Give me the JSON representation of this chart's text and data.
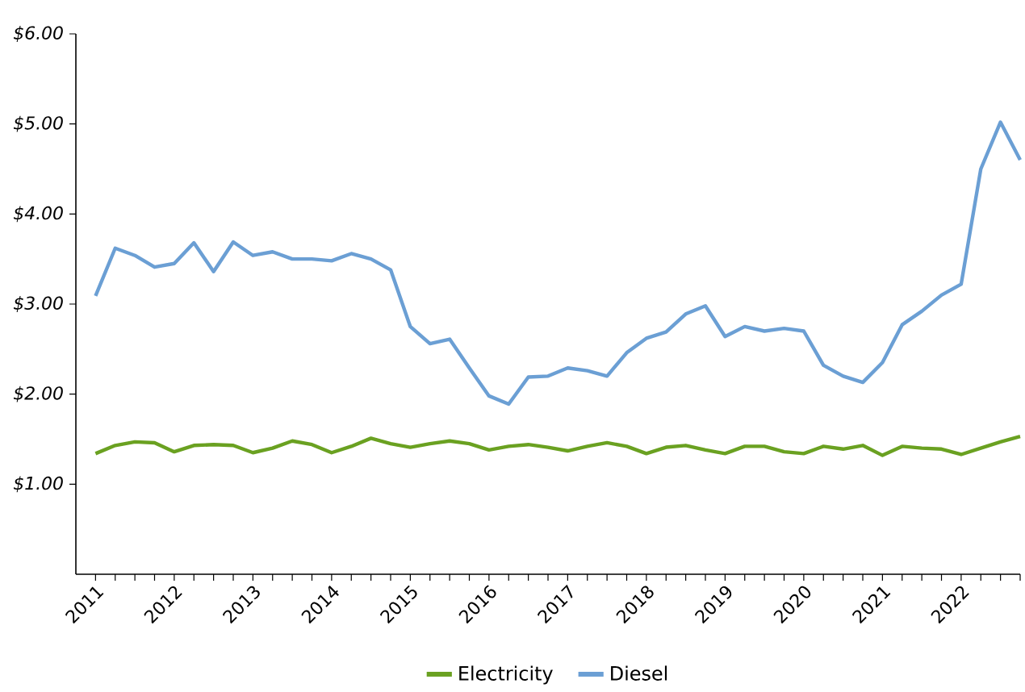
{
  "chart_data": {
    "type": "line",
    "legend": "bottom",
    "x": [
      2011,
      2011.25,
      2011.5,
      2011.75,
      2012,
      2012.25,
      2012.5,
      2012.75,
      2013,
      2013.25,
      2013.5,
      2013.75,
      2014,
      2014.25,
      2014.5,
      2014.75,
      2015,
      2015.25,
      2015.5,
      2015.75,
      2016,
      2016.25,
      2016.5,
      2016.75,
      2017,
      2017.25,
      2017.5,
      2017.75,
      2018,
      2018.25,
      2018.5,
      2018.75,
      2019,
      2019.25,
      2019.5,
      2019.75,
      2020,
      2020.25,
      2020.5,
      2020.75,
      2021,
      2021.25,
      2021.5,
      2021.75,
      2022,
      2022.25,
      2022.5,
      2022.75
    ],
    "series": [
      {
        "name": "Electricity",
        "color": "#6aa121",
        "values": [
          1.34,
          1.43,
          1.47,
          1.46,
          1.36,
          1.43,
          1.44,
          1.43,
          1.35,
          1.4,
          1.48,
          1.44,
          1.35,
          1.42,
          1.51,
          1.45,
          1.41,
          1.45,
          1.48,
          1.45,
          1.38,
          1.42,
          1.44,
          1.41,
          1.37,
          1.42,
          1.46,
          1.42,
          1.34,
          1.41,
          1.43,
          1.38,
          1.34,
          1.42,
          1.42,
          1.36,
          1.34,
          1.42,
          1.39,
          1.43,
          1.32,
          1.42,
          1.4,
          1.39,
          1.33,
          1.4,
          1.47,
          1.53
        ]
      },
      {
        "name": "Diesel",
        "color": "#6b9fd4",
        "values": [
          3.09,
          3.62,
          3.54,
          3.41,
          3.45,
          3.68,
          3.36,
          3.69,
          3.54,
          3.58,
          3.5,
          3.5,
          3.48,
          3.56,
          3.5,
          3.38,
          2.75,
          2.56,
          2.61,
          2.29,
          1.98,
          1.89,
          2.19,
          2.2,
          2.29,
          2.26,
          2.2,
          2.46,
          2.62,
          2.69,
          2.89,
          2.98,
          2.64,
          2.75,
          2.7,
          2.73,
          2.7,
          2.32,
          2.2,
          2.13,
          2.35,
          2.77,
          2.92,
          3.1,
          3.22,
          4.5,
          5.02,
          4.6
        ]
      }
    ],
    "xlim": [
      2010.75,
      2022.75
    ],
    "ylim": [
      0,
      6
    ],
    "xticks": [
      2011,
      {
        "value": 2011.25,
        "label": null
      },
      {
        "value": 2011.5,
        "label": null
      },
      {
        "value": 2011.75,
        "label": null
      },
      2012,
      {
        "value": 2012.25,
        "label": null
      },
      {
        "value": 2012.5,
        "label": null
      },
      {
        "value": 2012.75,
        "label": null
      },
      2013,
      {
        "value": 2013.25,
        "label": null
      },
      {
        "value": 2013.5,
        "label": null
      },
      {
        "value": 2013.75,
        "label": null
      },
      2014,
      {
        "value": 2014.25,
        "label": null
      },
      {
        "value": 2014.5,
        "label": null
      },
      {
        "value": 2014.75,
        "label": null
      },
      2015,
      {
        "value": 2015.25,
        "label": null
      },
      {
        "value": 2015.5,
        "label": null
      },
      {
        "value": 2015.75,
        "label": null
      },
      2016,
      {
        "value": 2016.25,
        "label": null
      },
      {
        "value": 2016.5,
        "label": null
      },
      {
        "value": 2016.75,
        "label": null
      },
      2017,
      {
        "value": 2017.25,
        "label": null
      },
      {
        "value": 2017.5,
        "label": null
      },
      {
        "value": 2017.75,
        "label": null
      },
      2018,
      {
        "value": 2018.25,
        "label": null
      },
      {
        "value": 2018.5,
        "label": null
      },
      {
        "value": 2018.75,
        "label": null
      },
      2019,
      {
        "value": 2019.25,
        "label": null
      },
      {
        "value": 2019.5,
        "label": null
      },
      {
        "value": 2019.75,
        "label": null
      },
      2020,
      {
        "value": 2020.25,
        "label": null
      },
      {
        "value": 2020.5,
        "label": null
      },
      {
        "value": 2020.75,
        "label": null
      },
      2021,
      {
        "value": 2021.25,
        "label": null
      },
      {
        "value": 2021.5,
        "label": null
      },
      {
        "value": 2021.75,
        "label": null
      },
      2022,
      {
        "value": 2022.25,
        "label": null
      },
      {
        "value": 2022.5,
        "label": null
      },
      {
        "value": 2022.75,
        "label": null
      }
    ],
    "yticks": [
      {
        "value": 1,
        "label": "$1.00"
      },
      {
        "value": 2,
        "label": "$2.00"
      },
      {
        "value": 3,
        "label": "$3.00"
      },
      {
        "value": 4,
        "label": "$4.00"
      },
      {
        "value": 5,
        "label": "$5.00"
      },
      {
        "value": 6,
        "label": "$6.00"
      }
    ]
  }
}
